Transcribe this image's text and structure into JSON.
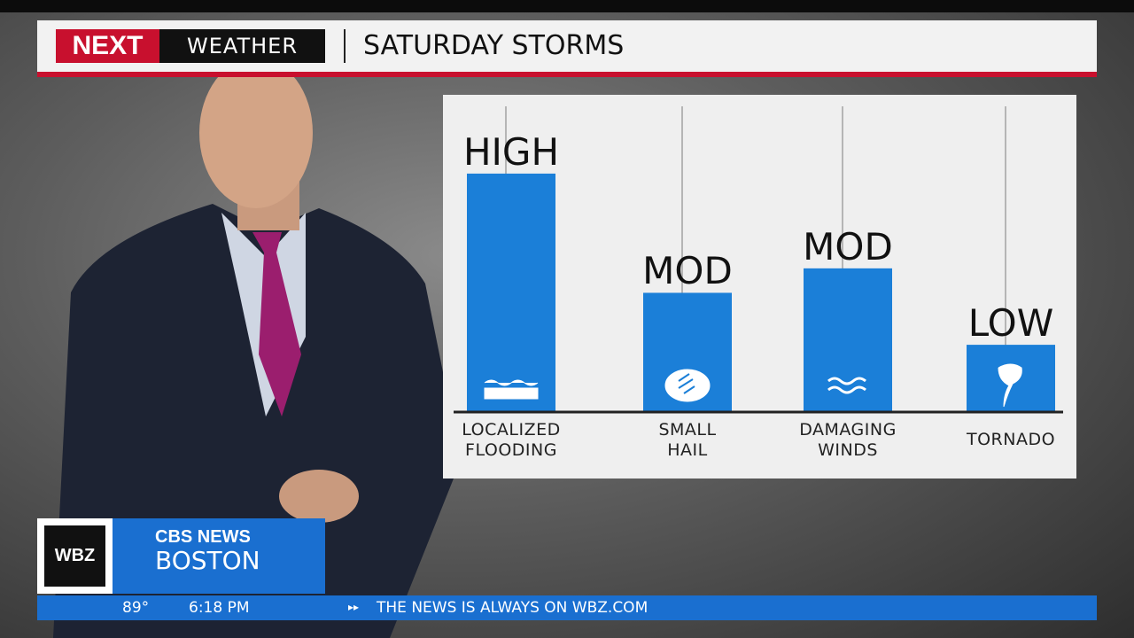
{
  "header": {
    "logo_next": "NEXT",
    "logo_weather": "WEATHER"
  },
  "chart_data": {
    "type": "bar",
    "title": "SATURDAY STORMS",
    "categories": [
      "LOCALIZED\nFLOODING",
      "SMALL\nHAIL",
      "DAMAGING\nWINDS",
      "TORNADO"
    ],
    "values": [
      78,
      39,
      47,
      22
    ],
    "risk_levels": [
      "HIGH",
      "MOD",
      "MOD",
      "LOW"
    ],
    "ylim": [
      0,
      100
    ],
    "color": "#1b7fd8"
  },
  "station": {
    "call_sign": "WBZ",
    "network": "CBS NEWS",
    "city": "BOSTON"
  },
  "ticker": {
    "temperature": "89°",
    "time": "6:18 PM",
    "message": "THE NEWS IS ALWAYS ON WBZ.COM"
  }
}
